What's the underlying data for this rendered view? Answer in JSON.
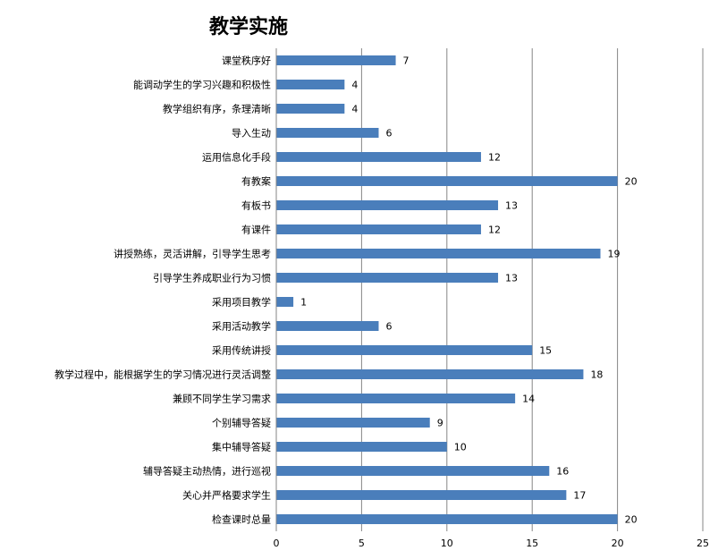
{
  "chart_data": {
    "type": "bar",
    "orientation": "horizontal",
    "title": "教学实施",
    "categories": [
      "课堂秩序好",
      "能调动学生的学习兴趣和积极性",
      "教学组织有序，条理清晰",
      "导入生动",
      "运用信息化手段",
      "有教案",
      "有板书",
      "有课件",
      "讲授熟练，灵活讲解，引导学生思考",
      "引导学生养成职业行为习惯",
      "采用项目教学",
      "采用活动教学",
      "采用传统讲授",
      "教学过程中，能根据学生的学习情况进行灵活调整",
      "兼顾不同学生学习需求",
      "个别辅导答疑",
      "集中辅导答疑",
      "辅导答疑主动热情，进行巡视",
      "关心并严格要求学生",
      "检查课时总量"
    ],
    "values": [
      7,
      4,
      4,
      6,
      12,
      20,
      13,
      12,
      19,
      13,
      1,
      6,
      15,
      18,
      14,
      9,
      10,
      16,
      17,
      20
    ],
    "xlim": [
      0,
      25
    ],
    "xticks": [
      0,
      5,
      10,
      15,
      20,
      25
    ],
    "grid": true,
    "legend": "none",
    "bar_color": "#4a7ebb",
    "grid_color": "#868686"
  }
}
